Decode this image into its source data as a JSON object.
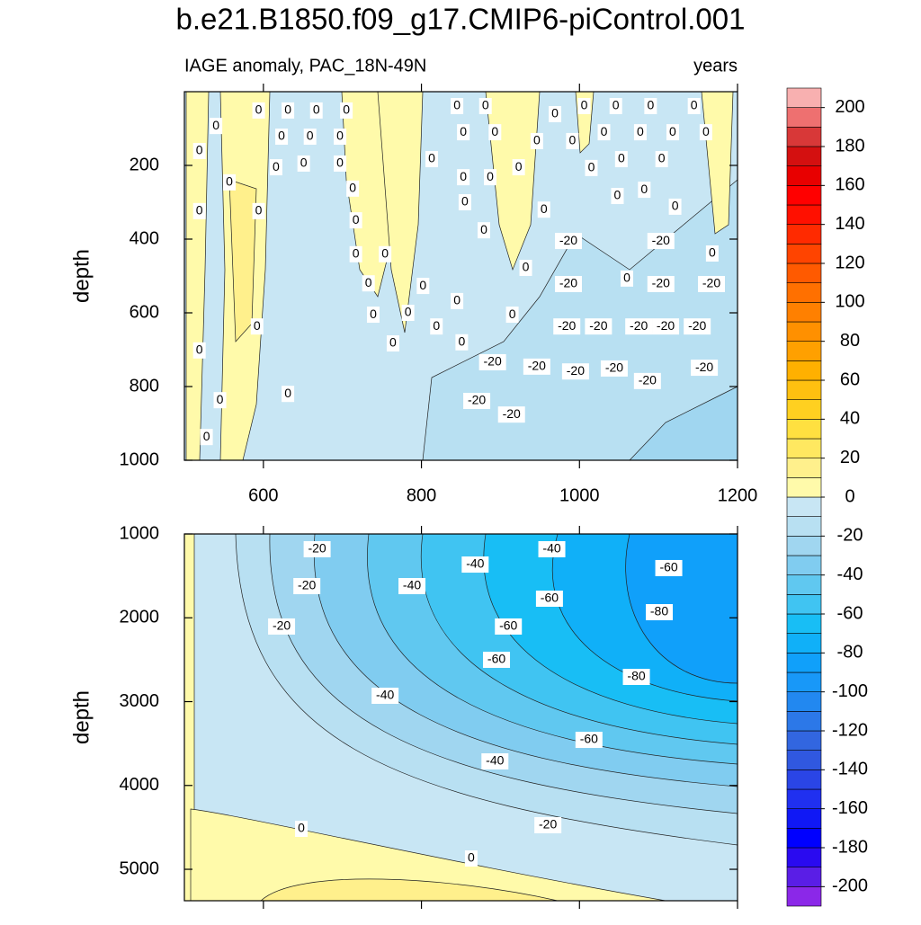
{
  "chart_data": {
    "type": "contour",
    "title": "b.e21.B1850.f09_g17.CMIP6-piControl.001",
    "xlim": [
      500,
      1200
    ],
    "xticks": [
      600,
      800,
      1000,
      1200
    ],
    "panels": [
      {
        "subtitle_left": "IAGE anomaly, PAC_18N-49N",
        "subtitle_right": "years",
        "ylabel": "depth",
        "ylim": [
          0,
          1000
        ],
        "yticks": [
          200,
          400,
          600,
          800,
          1000
        ],
        "contour_labels": [
          {
            "x": 540,
            "depth": 93,
            "level": 0
          },
          {
            "x": 519,
            "depth": 161,
            "level": 0
          },
          {
            "x": 519,
            "depth": 324,
            "level": 0
          },
          {
            "x": 594,
            "depth": 324,
            "level": 0
          },
          {
            "x": 557,
            "depth": 246,
            "level": 0
          },
          {
            "x": 594,
            "depth": 51,
            "level": 0
          },
          {
            "x": 631,
            "depth": 51,
            "level": 0
          },
          {
            "x": 667,
            "depth": 51,
            "level": 0
          },
          {
            "x": 705,
            "depth": 51,
            "level": 0
          },
          {
            "x": 623,
            "depth": 122,
            "level": 0
          },
          {
            "x": 659,
            "depth": 122,
            "level": 0
          },
          {
            "x": 697,
            "depth": 122,
            "level": 0
          },
          {
            "x": 616,
            "depth": 205,
            "level": 0
          },
          {
            "x": 651,
            "depth": 195,
            "level": 0
          },
          {
            "x": 697,
            "depth": 195,
            "level": 0
          },
          {
            "x": 713,
            "depth": 263,
            "level": 0
          },
          {
            "x": 717,
            "depth": 349,
            "level": 0
          },
          {
            "x": 717,
            "depth": 441,
            "level": 0
          },
          {
            "x": 754,
            "depth": 441,
            "level": 0
          },
          {
            "x": 733,
            "depth": 520,
            "level": 0
          },
          {
            "x": 739,
            "depth": 605,
            "level": 0
          },
          {
            "x": 783,
            "depth": 600,
            "level": 0
          },
          {
            "x": 802,
            "depth": 527,
            "level": 0
          },
          {
            "x": 819,
            "depth": 637,
            "level": 0
          },
          {
            "x": 845,
            "depth": 568,
            "level": 0
          },
          {
            "x": 764,
            "depth": 683,
            "level": 0
          },
          {
            "x": 851,
            "depth": 680,
            "level": 0
          },
          {
            "x": 592,
            "depth": 637,
            "level": 0
          },
          {
            "x": 519,
            "depth": 702,
            "level": 0
          },
          {
            "x": 545,
            "depth": 837,
            "level": 0
          },
          {
            "x": 528,
            "depth": 937,
            "level": 0
          },
          {
            "x": 631,
            "depth": 820,
            "level": 0
          },
          {
            "x": 813,
            "depth": 183,
            "level": 0
          },
          {
            "x": 853,
            "depth": 110,
            "level": 0
          },
          {
            "x": 893,
            "depth": 110,
            "level": 0
          },
          {
            "x": 845,
            "depth": 39,
            "level": 0
          },
          {
            "x": 881,
            "depth": 39,
            "level": 0
          },
          {
            "x": 853,
            "depth": 232,
            "level": 0
          },
          {
            "x": 887,
            "depth": 232,
            "level": 0
          },
          {
            "x": 855,
            "depth": 300,
            "level": 0
          },
          {
            "x": 879,
            "depth": 376,
            "level": 0
          },
          {
            "x": 923,
            "depth": 205,
            "level": 0
          },
          {
            "x": 946,
            "depth": 134,
            "level": 0
          },
          {
            "x": 969,
            "depth": 61,
            "level": 0
          },
          {
            "x": 991,
            "depth": 134,
            "level": 0
          },
          {
            "x": 1006,
            "depth": 39,
            "level": 0
          },
          {
            "x": 1046,
            "depth": 39,
            "level": 0
          },
          {
            "x": 1090,
            "depth": 39,
            "level": 0
          },
          {
            "x": 1145,
            "depth": 39,
            "level": 0
          },
          {
            "x": 1031,
            "depth": 110,
            "level": 0
          },
          {
            "x": 1077,
            "depth": 110,
            "level": 0
          },
          {
            "x": 1118,
            "depth": 110,
            "level": 0
          },
          {
            "x": 1160,
            "depth": 110,
            "level": 0
          },
          {
            "x": 1015,
            "depth": 207,
            "level": 0
          },
          {
            "x": 1053,
            "depth": 183,
            "level": 0
          },
          {
            "x": 1104,
            "depth": 183,
            "level": 0
          },
          {
            "x": 1048,
            "depth": 283,
            "level": 0
          },
          {
            "x": 1082,
            "depth": 266,
            "level": 0
          },
          {
            "x": 1121,
            "depth": 312,
            "level": 0
          },
          {
            "x": 955,
            "depth": 320,
            "level": 0
          },
          {
            "x": 932,
            "depth": 478,
            "level": 0
          },
          {
            "x": 915,
            "depth": 605,
            "level": 0
          },
          {
            "x": 1060,
            "depth": 507,
            "level": 0
          },
          {
            "x": 1168,
            "depth": 439,
            "level": 0
          },
          {
            "x": 986,
            "depth": 405,
            "level": -20
          },
          {
            "x": 1103,
            "depth": 405,
            "level": -20
          },
          {
            "x": 986,
            "depth": 522,
            "level": -20
          },
          {
            "x": 1103,
            "depth": 522,
            "level": -20
          },
          {
            "x": 1167,
            "depth": 522,
            "level": -20
          },
          {
            "x": 984,
            "depth": 637,
            "level": -20
          },
          {
            "x": 1024,
            "depth": 637,
            "level": -20
          },
          {
            "x": 1075,
            "depth": 637,
            "level": -20
          },
          {
            "x": 1109,
            "depth": 637,
            "level": -20
          },
          {
            "x": 1149,
            "depth": 637,
            "level": -20
          },
          {
            "x": 890,
            "depth": 734,
            "level": -20
          },
          {
            "x": 946,
            "depth": 746,
            "level": -20
          },
          {
            "x": 995,
            "depth": 759,
            "level": -20
          },
          {
            "x": 1044,
            "depth": 751,
            "level": -20
          },
          {
            "x": 1086,
            "depth": 785,
            "level": -20
          },
          {
            "x": 1158,
            "depth": 749,
            "level": -20
          },
          {
            "x": 870,
            "depth": 839,
            "level": -20
          },
          {
            "x": 914,
            "depth": 876,
            "level": -20
          }
        ]
      },
      {
        "ylabel": "depth",
        "ylim": [
          1000,
          5375
        ],
        "yticks": [
          1000,
          2000,
          3000,
          4000,
          5000
        ],
        "contour_labels": [
          {
            "x": 668,
            "depth": 1182,
            "level": -20
          },
          {
            "x": 655,
            "depth": 1622,
            "level": -20
          },
          {
            "x": 623,
            "depth": 2104,
            "level": -20
          },
          {
            "x": 788,
            "depth": 1622,
            "level": -40
          },
          {
            "x": 868,
            "depth": 1365,
            "level": -40
          },
          {
            "x": 965,
            "depth": 1182,
            "level": -40
          },
          {
            "x": 1113,
            "depth": 1407,
            "level": -60
          },
          {
            "x": 962,
            "depth": 1772,
            "level": -60
          },
          {
            "x": 910,
            "depth": 2104,
            "level": -60
          },
          {
            "x": 895,
            "depth": 2501,
            "level": -60
          },
          {
            "x": 1101,
            "depth": 1933,
            "level": -80
          },
          {
            "x": 1072,
            "depth": 2705,
            "level": -80
          },
          {
            "x": 754,
            "depth": 2930,
            "level": -40
          },
          {
            "x": 1012,
            "depth": 3456,
            "level": -60
          },
          {
            "x": 893,
            "depth": 3713,
            "level": -40
          },
          {
            "x": 960,
            "depth": 4474,
            "level": -20
          },
          {
            "x": 648,
            "depth": 4517,
            "level": 0
          },
          {
            "x": 863,
            "depth": 4871,
            "level": 0
          }
        ]
      }
    ],
    "colorbar": {
      "clim": [
        -210,
        210
      ],
      "ticks": [
        -200,
        -180,
        -160,
        -140,
        -120,
        -100,
        -80,
        -60,
        -40,
        -20,
        0,
        20,
        40,
        60,
        80,
        100,
        120,
        140,
        160,
        180,
        200
      ],
      "colors": [
        "#8b28e8",
        "#5a1ee6",
        "#2a0af0",
        "#0000ff",
        "#1018f5",
        "#2030f0",
        "#2a45e6",
        "#3058e0",
        "#3266e0",
        "#2c78e8",
        "#2288f0",
        "#1898f8",
        "#10a0fa",
        "#10b0f8",
        "#18bef5",
        "#40c4f2",
        "#60c8f0",
        "#80ccf0",
        "#a0d6f0",
        "#b8e0f2",
        "#c8e6f4",
        "#fffaaa",
        "#fff08c",
        "#ffe860",
        "#ffe040",
        "#ffd020",
        "#ffc010",
        "#ffb000",
        "#ffa000",
        "#ff9000",
        "#ff8000",
        "#ff7000",
        "#ff5a00",
        "#ff4400",
        "#ff2a00",
        "#ff1000",
        "#ff0000",
        "#e80000",
        "#d41010",
        "#d83838",
        "#ee7070",
        "#f8b0b0"
      ]
    }
  }
}
